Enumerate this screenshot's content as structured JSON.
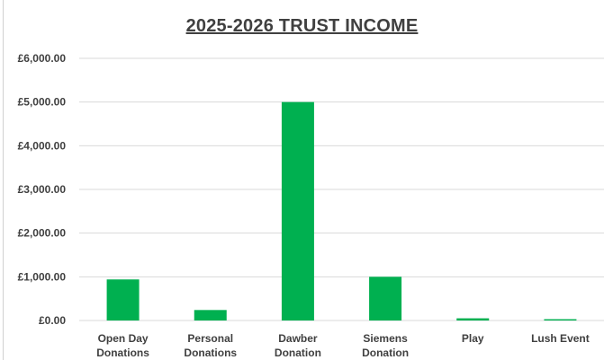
{
  "chart_data": {
    "type": "bar",
    "title": "2025-2026 TRUST INCOME",
    "xlabel": "",
    "ylabel": "",
    "ylim": [
      0,
      6000
    ],
    "yticks": [
      0,
      1000,
      2000,
      3000,
      4000,
      5000,
      6000
    ],
    "ytick_labels": [
      "£0.00",
      "£1,000.00",
      "£2,000.00",
      "£3,000.00",
      "£4,000.00",
      "£5,000.00",
      "£6,000.00"
    ],
    "categories": [
      [
        "Open Day",
        "Donations"
      ],
      [
        "Personal",
        "Donations"
      ],
      [
        "Dawber",
        "Donation"
      ],
      [
        "Siemens",
        "Donation"
      ],
      [
        "Play"
      ],
      [
        "Lush Event"
      ]
    ],
    "values": [
      940,
      240,
      5000,
      1000,
      50,
      30
    ],
    "grid": true,
    "bar_color": "#00b050",
    "grid_color": "#d9d9d9"
  }
}
